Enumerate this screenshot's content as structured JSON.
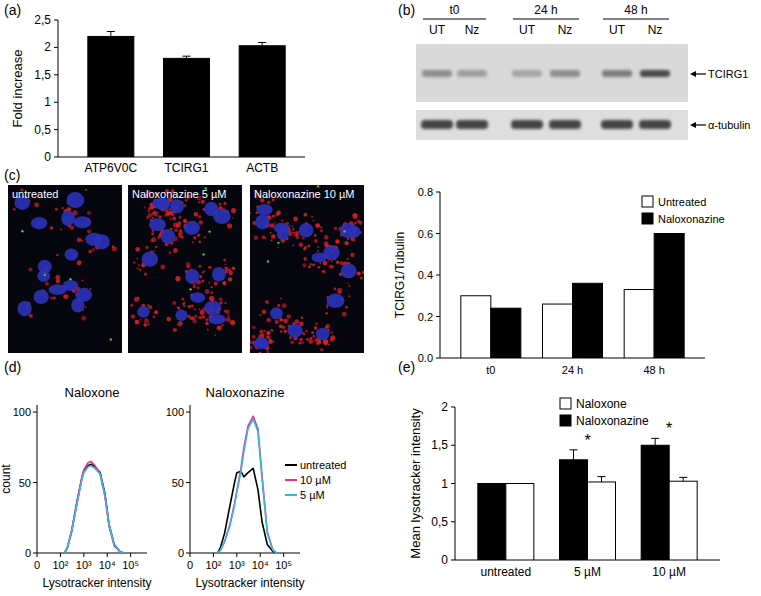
{
  "panels": [
    "(a)",
    "(b)",
    "(c)",
    "(d)",
    "(e)"
  ],
  "blot": {
    "timepoints": [
      "t0",
      "24 h",
      "48 h"
    ],
    "lanes": [
      "UT",
      "Nz"
    ],
    "proteins": [
      "TCIRG1",
      "α-tubulin"
    ]
  },
  "micrographs": {
    "labels": [
      "untreated",
      "Naloxonazine 5 µM",
      "Naloxonazine 10 µM"
    ]
  },
  "chart_data": [
    {
      "type": "bar",
      "ylabel": "Fold increase",
      "categories": [
        "ATP6V0C",
        "TCIRG1",
        "ACTB"
      ],
      "values": [
        2.2,
        1.8,
        2.03
      ],
      "errors": [
        0.09,
        0.04,
        0.06
      ],
      "color": "#000000",
      "ylim": [
        0,
        2.5
      ],
      "yticks": [
        0,
        {
          "value": 0.5,
          "label": "0,5"
        },
        1,
        {
          "value": 1.5,
          "label": "1,5"
        },
        2,
        {
          "value": 2.5,
          "label": "2,5"
        }
      ]
    },
    {
      "type": "bar",
      "ylabel": "TCIRG1/Tubulin",
      "categories": [
        "t0",
        "24 h",
        "48 h"
      ],
      "series": [
        {
          "name": "Untreated",
          "color": "#ffffff",
          "values": [
            0.3,
            0.26,
            0.33
          ]
        },
        {
          "name": "Naloxonazine",
          "color": "#000000",
          "values": [
            0.24,
            0.36,
            0.6
          ]
        }
      ],
      "ylim": [
        0,
        0.8
      ],
      "yticks": [
        {
          "value": 0,
          "label": "0.0"
        },
        0.2,
        0.4,
        0.6,
        0.8
      ],
      "legend": "top-right"
    },
    {
      "type": "line",
      "title": "Naloxone",
      "ylabel": "count",
      "xlabel": "Lysotracker intensity",
      "x": [
        150,
        200,
        300,
        500,
        800,
        1000,
        1500,
        2000,
        3000,
        5000,
        8000,
        12000,
        20000,
        35000,
        50000
      ],
      "series": [
        {
          "color": "#000000",
          "values": [
            0,
            4,
            15,
            35,
            52,
            58,
            62,
            63,
            61,
            57,
            42,
            20,
            6,
            1,
            0
          ]
        },
        {
          "color": "#e6337a",
          "values": [
            0,
            4,
            16,
            36,
            53,
            59,
            64,
            65,
            62,
            56,
            40,
            19,
            5,
            1,
            0
          ]
        },
        {
          "color": "#35b7e5",
          "values": [
            0,
            4,
            15,
            34,
            51,
            57,
            61,
            62,
            60,
            56,
            41,
            20,
            6,
            1,
            0
          ]
        }
      ],
      "xlim": [
        0,
        500000
      ],
      "xticks": [
        0,
        {
          "value": 100,
          "label": "10²"
        },
        {
          "value": 1000,
          "label": "10³"
        },
        {
          "value": 10000,
          "label": "10⁴"
        },
        {
          "value": 100000,
          "label": "10⁵"
        }
      ],
      "ylim": [
        0,
        105
      ],
      "yticks": [
        0,
        50,
        100
      ]
    },
    {
      "type": "line",
      "title": "Naloxonazine",
      "xlabel": "Lysotracker intensity",
      "x": [
        150,
        200,
        300,
        500,
        800,
        1000,
        1500,
        2000,
        3000,
        5000,
        8000,
        12000,
        20000,
        35000,
        50000
      ],
      "series": [
        {
          "name": "untreated",
          "color": "#000000",
          "values": [
            0,
            4,
            14,
            33,
            50,
            57,
            58,
            54,
            57,
            60,
            45,
            22,
            6,
            1,
            0
          ]
        },
        {
          "name": "10 µM",
          "color": "#e6337a",
          "values": [
            0,
            2,
            8,
            20,
            35,
            44,
            60,
            75,
            90,
            97,
            88,
            55,
            15,
            2,
            0
          ]
        },
        {
          "name": "5 µM",
          "color": "#35b7e5",
          "values": [
            0,
            2,
            8,
            19,
            34,
            43,
            58,
            72,
            88,
            95,
            86,
            52,
            14,
            2,
            0
          ]
        }
      ],
      "xlim": [
        0,
        500000
      ],
      "xticks": [
        0,
        {
          "value": 100,
          "label": "10²"
        },
        {
          "value": 1000,
          "label": "10³"
        },
        {
          "value": 10000,
          "label": "10⁴"
        },
        {
          "value": 100000,
          "label": "10⁵"
        }
      ],
      "ylim": [
        0,
        105
      ],
      "yticks": [
        0,
        50,
        100
      ],
      "legend": "right"
    },
    {
      "type": "bar",
      "ylabel": "Mean  lysotracker intensity",
      "categories": [
        "untreated",
        "5 µM",
        "10 µM"
      ],
      "series": [
        {
          "name": "Naloxonazine",
          "color": "#000000",
          "values": [
            1,
            1.31,
            1.5
          ],
          "errors": [
            0,
            0.13,
            0.09
          ]
        },
        {
          "name": "Naloxone",
          "color": "#ffffff",
          "values": [
            1,
            1.02,
            1.03
          ],
          "errors": [
            0,
            0.07,
            0.05
          ]
        }
      ],
      "ylim": [
        0,
        2
      ],
      "yticks": [
        0,
        {
          "value": 0.5,
          "label": "0,5"
        },
        1,
        {
          "value": 1.5,
          "label": "1,5"
        },
        2
      ],
      "legend": "top-right",
      "annotations": [
        {
          "text": "*",
          "category": "5 µM"
        },
        {
          "text": "*",
          "category": "10 µM"
        }
      ]
    }
  ]
}
